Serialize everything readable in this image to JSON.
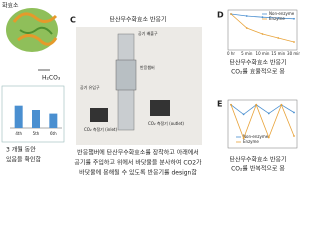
{
  "panel_a": {
    "title": "화효소",
    "product": "H₂CO₃"
  },
  "panel_b": {
    "type": "bar",
    "categories": [
      "4th",
      "5th",
      "6th"
    ],
    "values": [
      0.62,
      0.5,
      0.4
    ],
    "ylim": [
      0,
      1
    ],
    "color": "#4a8fd0",
    "caption": [
      "3 개월 동안",
      "있음을 확인함"
    ]
  },
  "panel_c": {
    "label": "C",
    "title": "탄산무수화효소 반응기",
    "photo_labels": [
      "공기 배출구",
      "공기 유입구",
      "반응챔버",
      "CO₂ 측정기 (outlet)",
      "CO₂ 측정기 (inlet)"
    ],
    "caption": [
      "반응챔버에 탄산무수화효소를 장착하고 아래에서",
      "공기를 주입하고 위에서 바닷물을 분사하여 CO2가",
      "바닷물에 용해될 수 있도록 반응기를 design함"
    ]
  },
  "panel_d": {
    "label": "D",
    "type": "line",
    "categories": [
      "0 hr",
      "5 min",
      "10 min",
      "15 min",
      "30 min"
    ],
    "ylim": [
      0,
      1
    ],
    "series": [
      {
        "name": "Non-enzyme",
        "color": "#4a8fd0",
        "values": [
          0.9,
          0.85,
          0.82,
          0.8,
          0.78
        ]
      },
      {
        "name": "Enzyme",
        "color": "#e8a33a",
        "values": [
          0.9,
          0.55,
          0.4,
          0.3,
          0.2
        ]
      }
    ],
    "caption": [
      "탄산무수화효소 반응기",
      "CO₂를 효율적으로 용"
    ]
  },
  "panel_e": {
    "label": "E",
    "type": "line",
    "ylim": [
      0,
      1
    ],
    "series": [
      {
        "name": "Non-enzyme",
        "color": "#4a8fd0",
        "values": [
          0.9,
          0.7,
          0.9,
          0.72,
          0.9,
          0.74
        ]
      },
      {
        "name": "Enzyme",
        "color": "#e8a33a",
        "values": [
          0.9,
          0.2,
          0.9,
          0.22,
          0.9,
          0.25
        ]
      }
    ],
    "caption": [
      "탄산무수화효소 반응기",
      "CO₂를 반복적으로 용"
    ]
  }
}
